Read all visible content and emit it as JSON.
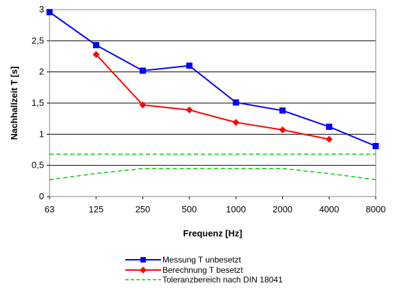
{
  "chart_data": {
    "type": "line",
    "categories": [
      "63",
      "125",
      "250",
      "500",
      "1000",
      "2000",
      "4000",
      "8000"
    ],
    "xlabel": "Frequenz [Hz]",
    "ylabel": "Nachhallzeit T [s]",
    "ylim": [
      0,
      3
    ],
    "yticks": [
      "0",
      "0,5",
      "1",
      "1,5",
      "2",
      "2,5",
      "3"
    ],
    "yticks_values": [
      0,
      0.5,
      1,
      1.5,
      2,
      2.5,
      3
    ],
    "grid": "horizontal",
    "legend_position": "bottom",
    "series": [
      {
        "name": "Messung T unbesetzt",
        "color": "#0000ff",
        "marker": "square",
        "style": "solid",
        "values": [
          2.96,
          2.43,
          2.02,
          2.1,
          1.51,
          1.38,
          1.12,
          0.81
        ]
      },
      {
        "name": "Berechnung T besetzt",
        "color": "#ff0000",
        "marker": "diamond",
        "style": "solid",
        "values": [
          null,
          2.28,
          1.47,
          1.39,
          1.19,
          1.07,
          0.92,
          null
        ]
      },
      {
        "name": "Toleranzbereich nach DIN 18041",
        "color": "#00cc00",
        "marker": "none",
        "style": "dashed",
        "upper": [
          0.68,
          0.68,
          0.68,
          0.68,
          0.68,
          0.68,
          0.68,
          0.68
        ],
        "lower": [
          0.27,
          0.37,
          0.45,
          0.45,
          0.45,
          0.45,
          0.37,
          0.27
        ]
      }
    ]
  }
}
